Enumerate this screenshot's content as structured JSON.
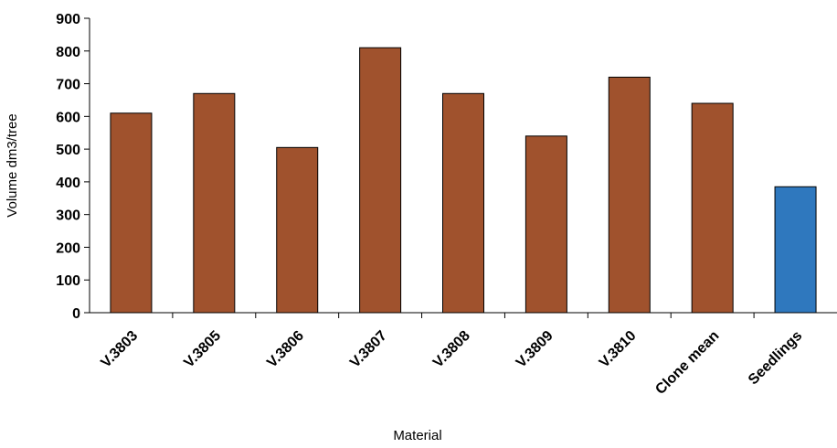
{
  "chart_data": {
    "type": "bar",
    "title": "",
    "xlabel": "Material",
    "ylabel": "Volume dm3/tree",
    "ylim": [
      0,
      900
    ],
    "yticks": [
      0,
      100,
      200,
      300,
      400,
      500,
      600,
      700,
      800,
      900
    ],
    "grid": false,
    "legend": "none",
    "categories": [
      "V.3803",
      "V.3805",
      "V.3806",
      "V.3807",
      "V.3808",
      "V.3809",
      "V.3810",
      "Clone mean",
      "Seedlings"
    ],
    "values": [
      610,
      670,
      505,
      810,
      670,
      540,
      720,
      640,
      385
    ],
    "bar_colors": [
      "#a0522d",
      "#a0522d",
      "#a0522d",
      "#a0522d",
      "#a0522d",
      "#a0522d",
      "#a0522d",
      "#a0522d",
      "#2f78be"
    ]
  }
}
